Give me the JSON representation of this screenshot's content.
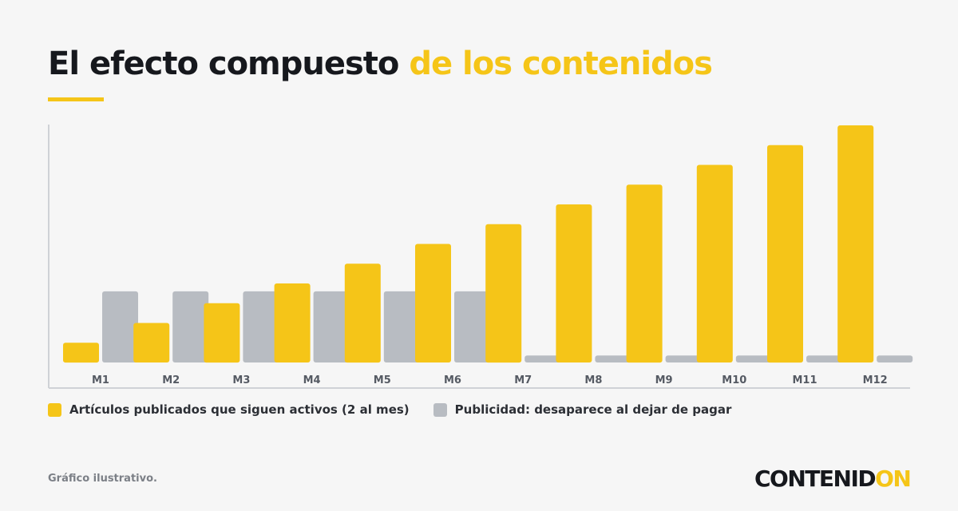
{
  "header": {
    "title_dark": "El efecto compuesto",
    "title_accent": "de los contenidos"
  },
  "colors": {
    "primary": "#f5c518",
    "secondary": "#b8bcc2",
    "text_dark": "#16181d",
    "background": "#f6f6f6"
  },
  "chart_data": {
    "type": "bar",
    "categories": [
      "M1",
      "M2",
      "M3",
      "M4",
      "M5",
      "M6",
      "M7",
      "M8",
      "M9",
      "M10",
      "M11",
      "M12"
    ],
    "series": [
      {
        "name": "Artículos publicados que siguen activos (2 al mes)",
        "values": [
          2,
          4,
          6,
          8,
          10,
          12,
          14,
          16,
          18,
          20,
          22,
          24
        ]
      },
      {
        "name": "Publicidad: desaparece al dejar de pagar",
        "values": [
          7.2,
          7.2,
          7.2,
          7.2,
          7.2,
          7.2,
          0.7,
          0.7,
          0.7,
          0.7,
          0.7,
          0.7
        ]
      }
    ],
    "ylim": [
      0,
      24
    ],
    "grid": false,
    "legend": "bottom-left"
  },
  "footer": {
    "note": "Gráfico ilustrativo.",
    "brand_main": "CONTENID",
    "brand_accent": "ON"
  }
}
